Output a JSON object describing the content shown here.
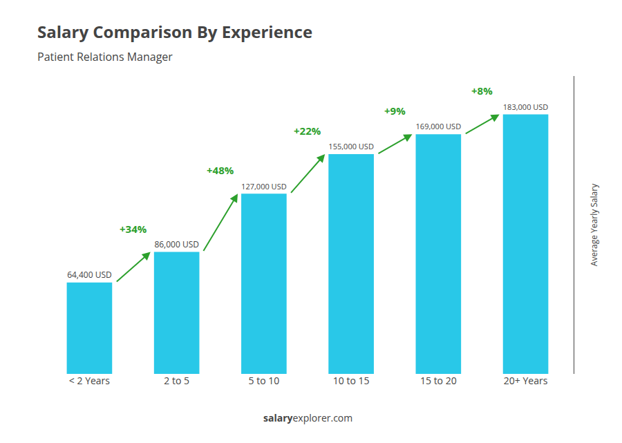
{
  "chart_data": {
    "type": "bar",
    "title": "Salary Comparison By Experience",
    "subtitle": "Patient Relations Manager",
    "categories": [
      "< 2 Years",
      "2 to 5",
      "5 to 10",
      "10 to 15",
      "15 to 20",
      "20+ Years"
    ],
    "values": [
      64400,
      86000,
      127000,
      155000,
      169000,
      183000
    ],
    "value_labels": [
      "64,400 USD",
      "86,000 USD",
      "127,000 USD",
      "155,000 USD",
      "169,000 USD",
      "183,000 USD"
    ],
    "data_labels": true,
    "color": "#29c8e8",
    "ylabel": "Average Yearly Salary",
    "ylim": [
      0,
      210000
    ],
    "tick_labels": "x",
    "grid": false,
    "annotations": [
      "+34%",
      "+48%",
      "+22%",
      "+9%",
      "+8%"
    ],
    "footer": [
      "salary",
      "explorer.com"
    ]
  }
}
